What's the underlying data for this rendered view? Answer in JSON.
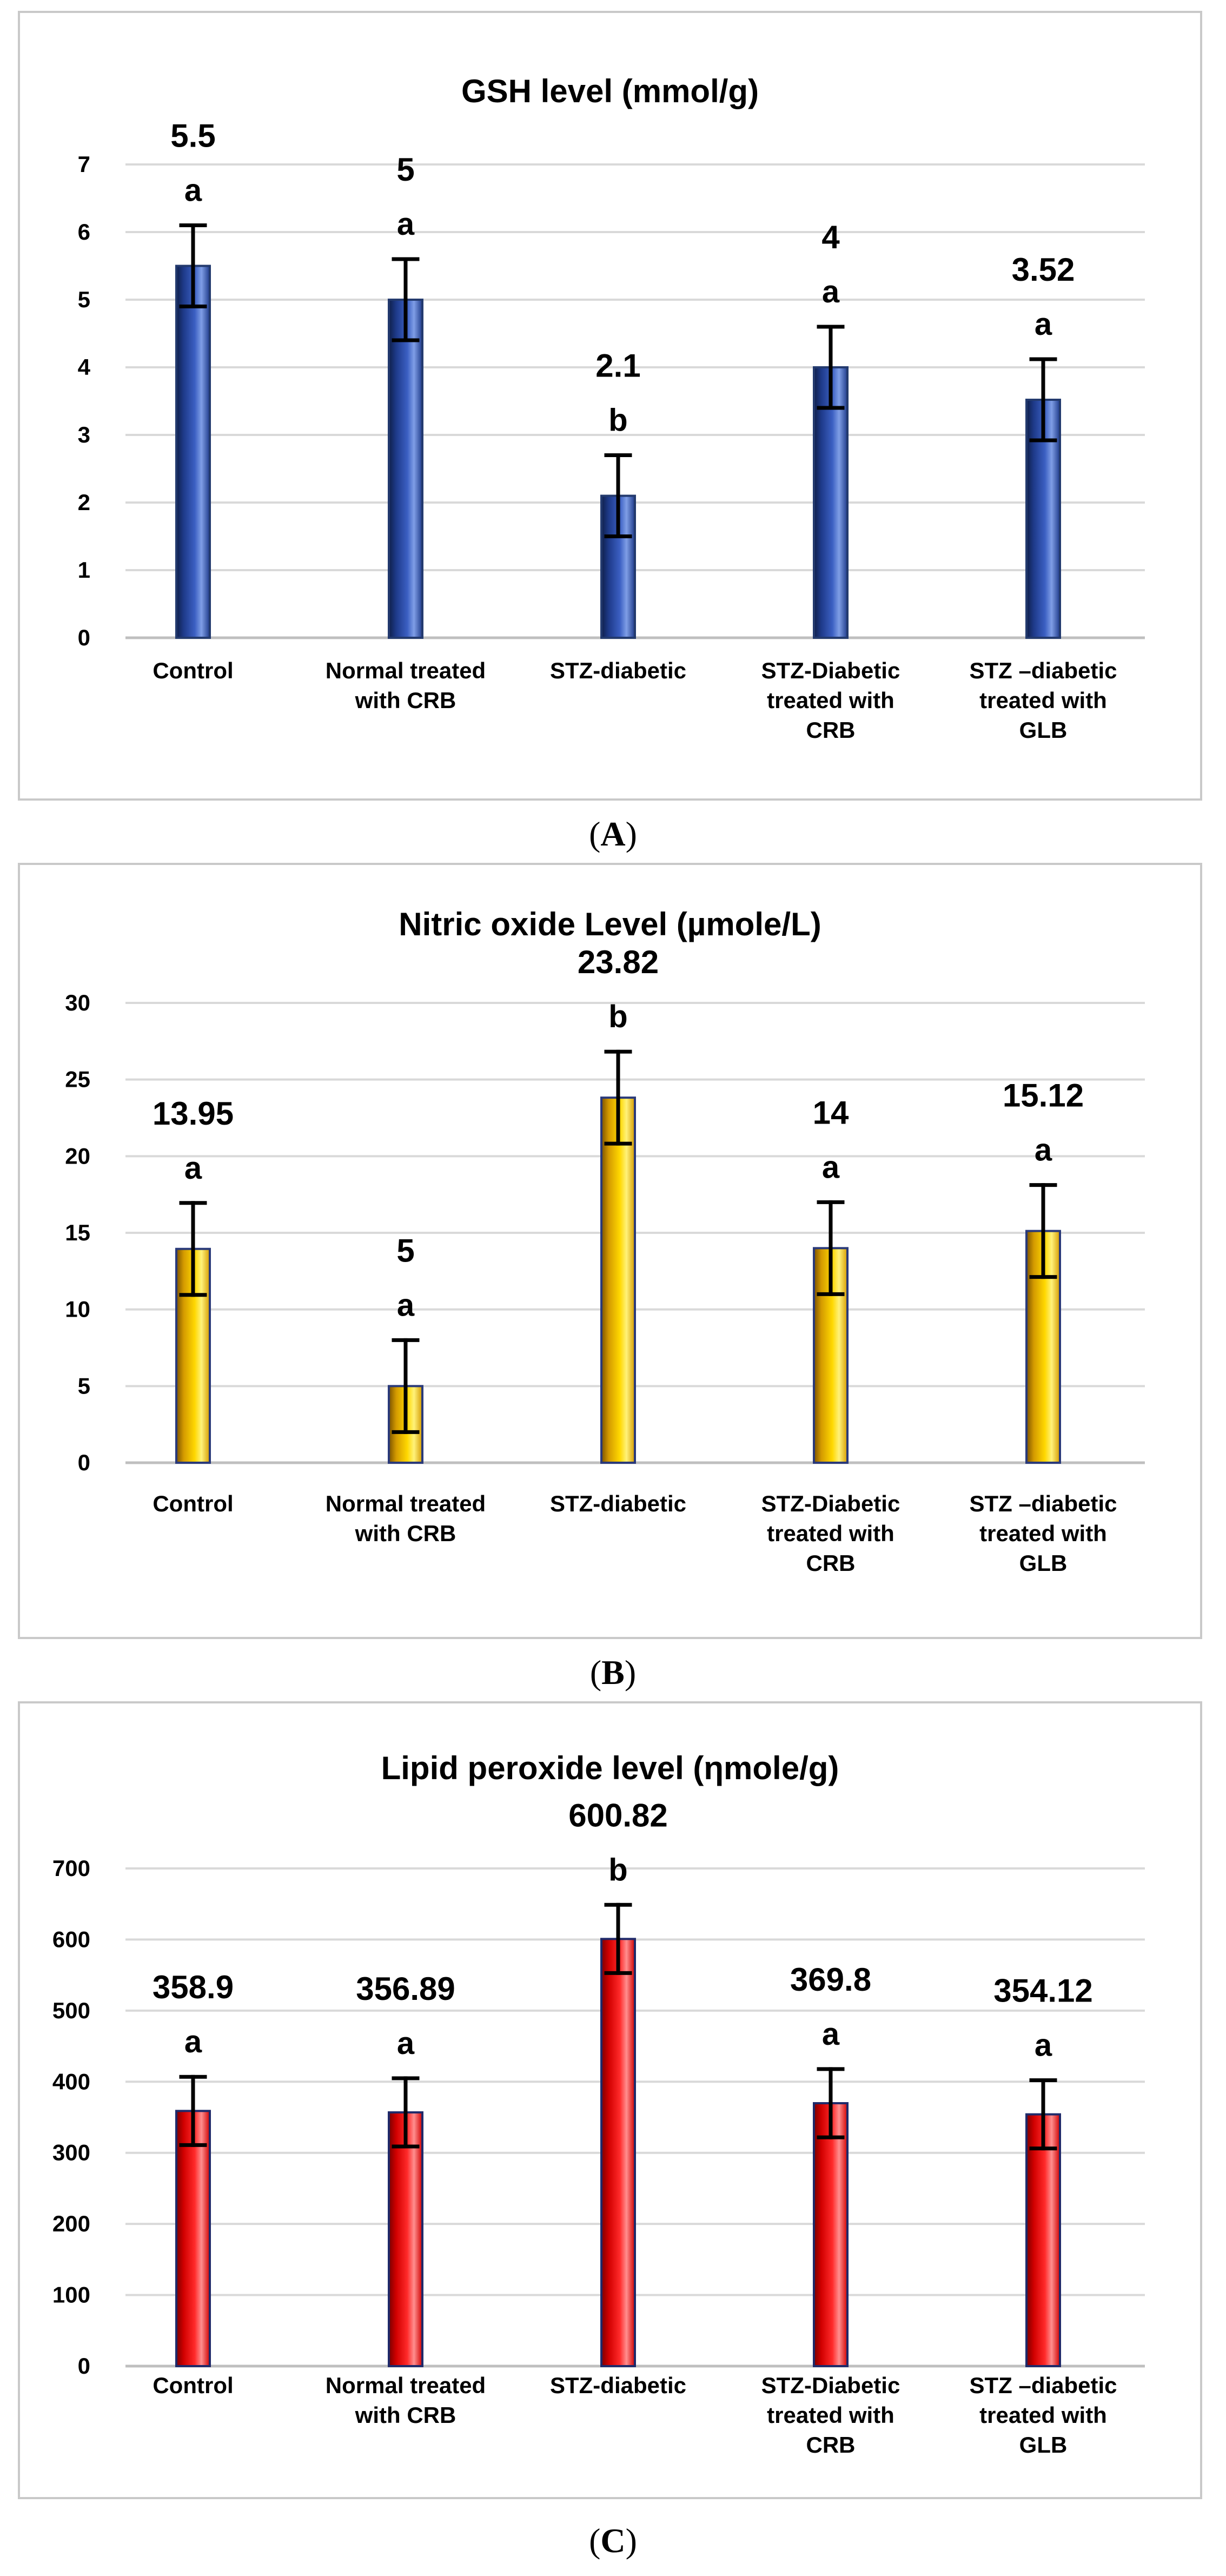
{
  "chart_data": [
    {
      "type": "bar",
      "title": "GSH level (mmol/g)",
      "caption": {
        "open": "(",
        "letter": "A",
        "close": ")"
      },
      "categories": [
        [
          "Control"
        ],
        [
          "Normal treated",
          "with CRB"
        ],
        [
          "STZ-diabetic"
        ],
        [
          "STZ-Diabetic",
          "treated with",
          "CRB"
        ],
        [
          "STZ –diabetic",
          "treated with",
          "GLB"
        ]
      ],
      "values": [
        5.5,
        5,
        2.1,
        4,
        3.52
      ],
      "value_labels": [
        "5.5",
        "5",
        "2.1",
        "4",
        "3.52"
      ],
      "errors": [
        0.6,
        0.6,
        0.6,
        0.6,
        0.6
      ],
      "letters": [
        "a",
        "a",
        "b",
        "a",
        "a"
      ],
      "ylim": [
        0,
        7
      ],
      "yticks": [
        0,
        1,
        2,
        3,
        4,
        5,
        6,
        7
      ],
      "colors": {
        "dark": "#0f1f4a",
        "mid": "#1e3a8a",
        "light": "#3b5fc2",
        "highlight": "#7f9ee6",
        "frame": "#233a6e"
      }
    },
    {
      "type": "bar",
      "title": "Nitric oxide Level (µmole/L)",
      "caption": {
        "open": "(",
        "letter": "B",
        "close": ")"
      },
      "categories": [
        [
          "Control"
        ],
        [
          "Normal treated",
          "with CRB"
        ],
        [
          "STZ-diabetic"
        ],
        [
          "STZ-Diabetic",
          "treated with",
          "CRB"
        ],
        [
          "STZ –diabetic",
          "treated with",
          "GLB"
        ]
      ],
      "values": [
        13.95,
        5,
        23.82,
        14,
        15.12
      ],
      "value_labels": [
        "13.95",
        "5",
        "23.82",
        "14",
        "15.12"
      ],
      "errors": [
        3,
        3,
        3,
        3,
        3
      ],
      "letters": [
        "a",
        "a",
        "b",
        "a",
        "a"
      ],
      "ylim": [
        0,
        30
      ],
      "yticks": [
        0,
        5,
        10,
        15,
        20,
        25,
        30
      ],
      "colors": {
        "dark": "#7a5200",
        "mid": "#d49a00",
        "light": "#ffd800",
        "highlight": "#fff27a",
        "frame": "#2a3a7a"
      }
    },
    {
      "type": "bar",
      "title": "Lipid peroxide level (ηmole/g)",
      "caption": {
        "open": "(",
        "letter": "C",
        "close": ")"
      },
      "categories": [
        [
          "Control"
        ],
        [
          "Normal treated",
          "with CRB"
        ],
        [
          "STZ-diabetic"
        ],
        [
          "STZ-Diabetic",
          "treated with",
          "CRB"
        ],
        [
          "STZ –diabetic",
          "treated with",
          "GLB"
        ]
      ],
      "values": [
        358.9,
        356.89,
        600.82,
        369.8,
        354.12
      ],
      "value_labels": [
        "358.9",
        "356.89",
        "600.82",
        "369.8",
        "354.12"
      ],
      "errors": [
        48,
        48,
        48,
        48,
        48
      ],
      "letters": [
        "a",
        "a",
        "b",
        "a",
        "a"
      ],
      "ylim": [
        0,
        700
      ],
      "yticks": [
        0,
        100,
        200,
        300,
        400,
        500,
        600,
        700
      ],
      "colors": {
        "dark": "#7a0000",
        "mid": "#d10000",
        "light": "#ff2a2a",
        "highlight": "#ff8f8f",
        "frame": "#1f2a6a"
      }
    }
  ]
}
